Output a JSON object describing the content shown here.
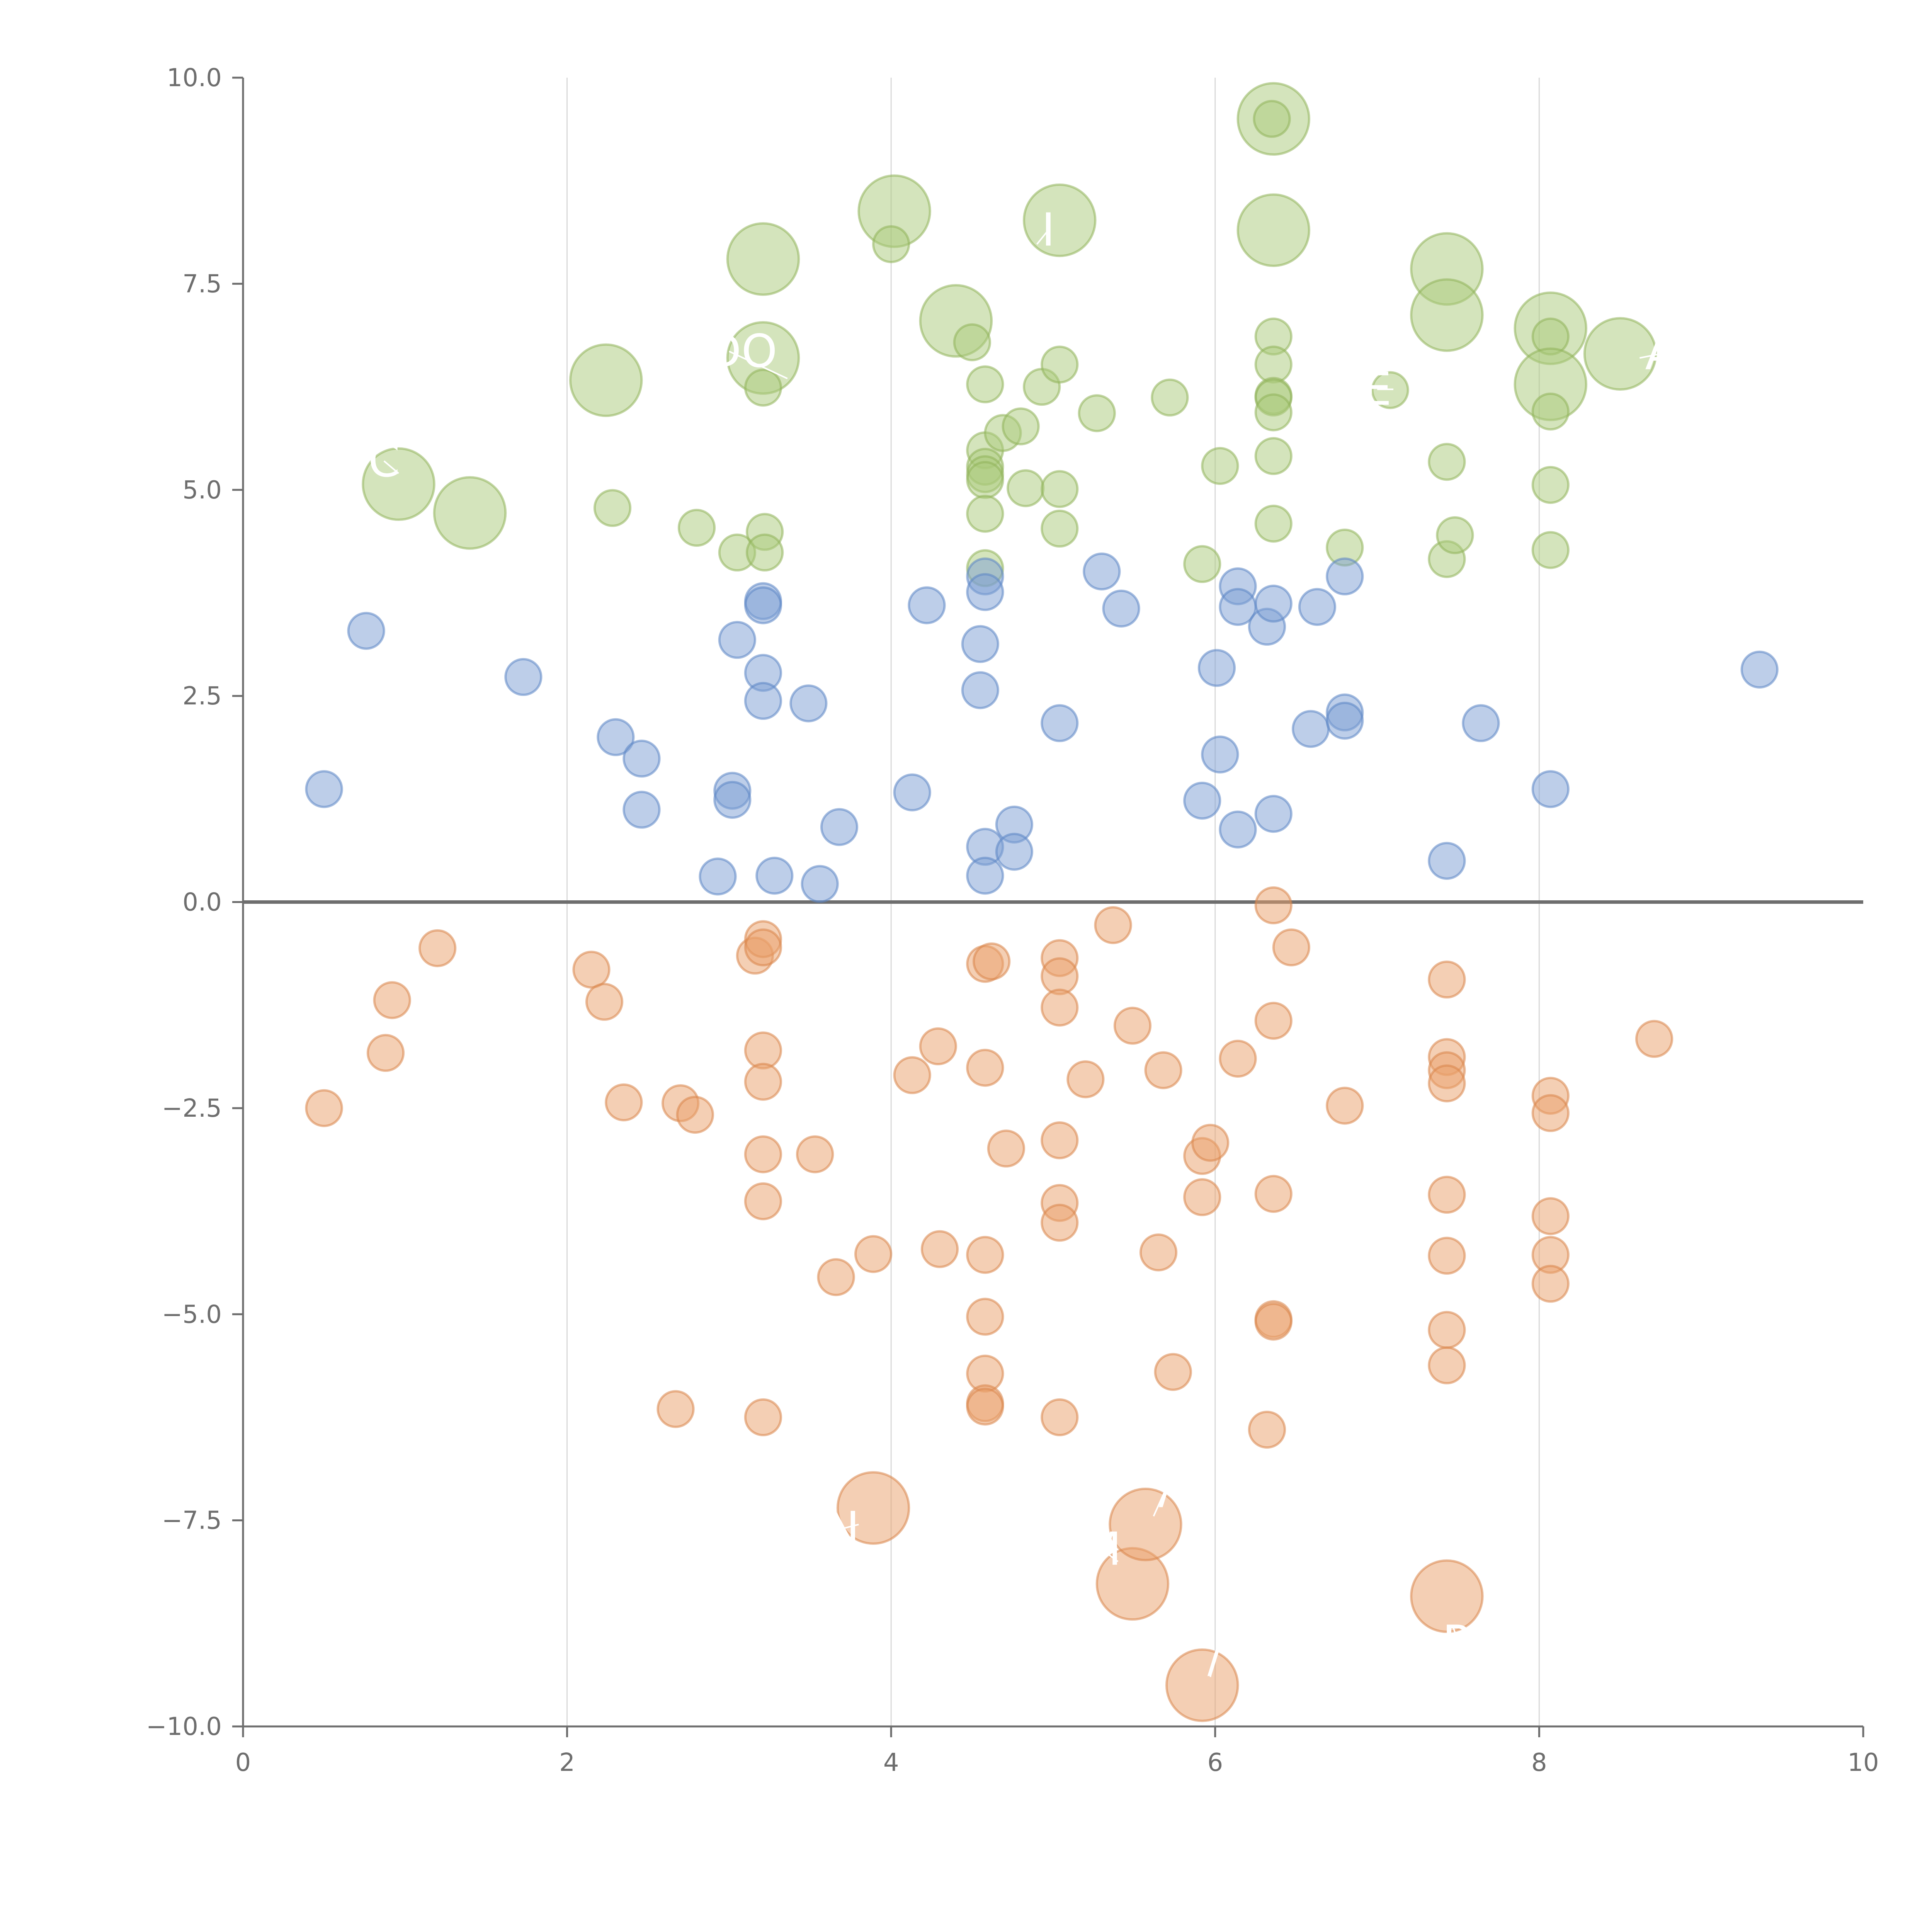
{
  "chart_data": {
    "type": "scatter",
    "title": "",
    "xlabel": "",
    "ylabel": "",
    "xlim": [
      0,
      10
    ],
    "ylim": [
      -10,
      10
    ],
    "x_ticks": [
      0,
      2,
      4,
      6,
      8,
      10
    ],
    "x_tick_labels": [
      "0",
      "2",
      "4",
      "6",
      "8",
      "10"
    ],
    "y_ticks": [
      10,
      7.5,
      5,
      2.5,
      0,
      -2.5,
      -5,
      -7.5,
      -10
    ],
    "y_tick_labels": [
      "10.0",
      "7.5",
      "5.0",
      "2.5",
      "0.0",
      "−2.5",
      "−5.0",
      "−7.5",
      "−10.0"
    ],
    "vertical_grid": [
      2,
      4,
      6,
      8
    ],
    "zero_line": 0,
    "colors": {
      "green": "#a9c97a",
      "green_edge": "#8fb35a",
      "blue": "#7b9ed3",
      "blue_edge": "#5b85c4",
      "orange": "#e9a06a",
      "orange_edge": "#d9854a",
      "axis": "#6e6e6e",
      "grid": "#d9d9d9",
      "zero_line": "#6e6e6e",
      "label": "#ffffff"
    },
    "series": [
      {
        "name": "positive-high",
        "color": "green",
        "points": [
          [
            6.36,
            9.5,
            0.22
          ],
          [
            6.35,
            9.5,
            0.11
          ],
          [
            4.02,
            8.38,
            0.22
          ],
          [
            4.0,
            7.98,
            0.11
          ],
          [
            5.04,
            8.27,
            0.22
          ],
          [
            6.36,
            8.15,
            0.22
          ],
          [
            7.43,
            7.68,
            0.22
          ],
          [
            7.43,
            7.12,
            0.22
          ],
          [
            8.07,
            6.96,
            0.22
          ],
          [
            8.07,
            6.86,
            0.11
          ],
          [
            8.07,
            6.28,
            0.22
          ],
          [
            8.07,
            5.95,
            0.11
          ],
          [
            8.5,
            6.65,
            0.22
          ],
          [
            3.21,
            7.8,
            0.22
          ],
          [
            3.21,
            6.6,
            0.22
          ],
          [
            3.21,
            6.24,
            0.11
          ],
          [
            4.4,
            7.05,
            0.22
          ],
          [
            4.5,
            6.79,
            0.11
          ],
          [
            2.24,
            6.33,
            0.22
          ],
          [
            0.96,
            5.07,
            0.22
          ],
          [
            1.4,
            4.72,
            0.22
          ],
          [
            2.28,
            4.78,
            0.11
          ],
          [
            2.8,
            4.54,
            0.11
          ],
          [
            3.05,
            4.24,
            0.11
          ],
          [
            3.22,
            4.49,
            0.11
          ],
          [
            3.22,
            4.24,
            0.11
          ],
          [
            4.58,
            6.28,
            0.11
          ],
          [
            4.58,
            5.48,
            0.11
          ],
          [
            4.58,
            5.28,
            0.11
          ],
          [
            4.58,
            5.19,
            0.11
          ],
          [
            4.58,
            5.12,
            0.11
          ],
          [
            4.58,
            4.71,
            0.11
          ],
          [
            4.58,
            4.05,
            0.11
          ],
          [
            4.69,
            5.69,
            0.11
          ],
          [
            4.8,
            5.77,
            0.11
          ],
          [
            4.83,
            5.02,
            0.11
          ],
          [
            4.93,
            6.25,
            0.11
          ],
          [
            5.04,
            6.52,
            0.11
          ],
          [
            5.04,
            5.01,
            0.11
          ],
          [
            5.04,
            4.53,
            0.11
          ],
          [
            5.27,
            5.93,
            0.11
          ],
          [
            5.72,
            6.12,
            0.11
          ],
          [
            5.92,
            4.1,
            0.11
          ],
          [
            6.03,
            5.29,
            0.11
          ],
          [
            6.36,
            6.86,
            0.11
          ],
          [
            6.36,
            6.52,
            0.11
          ],
          [
            6.36,
            6.14,
            0.11
          ],
          [
            6.36,
            6.12,
            0.11
          ],
          [
            6.36,
            5.94,
            0.11
          ],
          [
            6.36,
            5.41,
            0.11
          ],
          [
            6.36,
            4.59,
            0.11
          ],
          [
            6.8,
            4.3,
            0.11
          ],
          [
            7.08,
            6.21,
            0.11
          ],
          [
            7.43,
            5.34,
            0.11
          ],
          [
            7.43,
            4.16,
            0.11
          ],
          [
            7.48,
            4.45,
            0.11
          ],
          [
            8.07,
            5.06,
            0.11
          ],
          [
            8.07,
            4.27,
            0.11
          ]
        ]
      },
      {
        "name": "positive-low",
        "color": "blue",
        "points": [
          [
            0.76,
            3.29
          ],
          [
            1.73,
            2.73
          ],
          [
            0.5,
            1.37
          ],
          [
            2.3,
            2.0
          ],
          [
            2.46,
            1.74
          ],
          [
            2.46,
            1.12
          ],
          [
            2.93,
            0.31
          ],
          [
            3.05,
            3.18
          ],
          [
            3.02,
            1.35
          ],
          [
            3.02,
            1.24
          ],
          [
            3.21,
            3.65
          ],
          [
            3.21,
            3.6
          ],
          [
            3.21,
            2.78
          ],
          [
            3.21,
            2.44
          ],
          [
            3.28,
            0.32
          ],
          [
            3.49,
            2.41
          ],
          [
            3.56,
            0.22
          ],
          [
            3.68,
            0.91
          ],
          [
            4.13,
            1.33
          ],
          [
            4.22,
            3.6
          ],
          [
            4.55,
            3.13
          ],
          [
            4.55,
            2.57
          ],
          [
            4.58,
            3.95
          ],
          [
            4.58,
            3.76
          ],
          [
            4.58,
            0.67
          ],
          [
            4.58,
            0.32
          ],
          [
            4.76,
            0.94
          ],
          [
            4.76,
            0.61
          ],
          [
            5.04,
            2.17
          ],
          [
            5.3,
            4.01
          ],
          [
            5.42,
            3.56
          ],
          [
            5.92,
            1.23
          ],
          [
            6.01,
            2.84
          ],
          [
            6.03,
            1.79
          ],
          [
            6.14,
            3.83
          ],
          [
            6.14,
            3.58
          ],
          [
            6.14,
            0.88
          ],
          [
            6.32,
            3.34
          ],
          [
            6.36,
            3.62
          ],
          [
            6.36,
            1.07
          ],
          [
            6.59,
            2.1
          ],
          [
            6.63,
            3.58
          ],
          [
            6.8,
            3.95
          ],
          [
            6.8,
            2.3
          ],
          [
            6.8,
            2.2
          ],
          [
            7.43,
            0.5
          ],
          [
            7.64,
            2.17
          ],
          [
            8.07,
            1.37
          ],
          [
            9.36,
            2.82
          ]
        ]
      },
      {
        "name": "negative",
        "color": "orange",
        "points": [
          [
            0.5,
            -2.5,
            0.11
          ],
          [
            0.88,
            -1.83,
            0.11
          ],
          [
            0.92,
            -1.19,
            0.11
          ],
          [
            1.2,
            -0.56,
            0.11
          ],
          [
            2.15,
            -0.82,
            0.11
          ],
          [
            2.23,
            -1.21,
            0.11
          ],
          [
            2.35,
            -2.43,
            0.11
          ],
          [
            2.67,
            -6.15,
            0.11
          ],
          [
            2.7,
            -2.44,
            0.11
          ],
          [
            2.79,
            -2.58,
            0.11
          ],
          [
            3.16,
            -0.65,
            0.11
          ],
          [
            3.21,
            -0.45,
            0.11
          ],
          [
            3.21,
            -0.55,
            0.11
          ],
          [
            3.21,
            -1.8,
            0.11
          ],
          [
            3.21,
            -2.18,
            0.11
          ],
          [
            3.21,
            -3.06,
            0.11
          ],
          [
            3.21,
            -3.63,
            0.11
          ],
          [
            3.21,
            -6.25,
            0.11
          ],
          [
            3.53,
            -3.06,
            0.11
          ],
          [
            3.66,
            -4.55,
            0.11
          ],
          [
            3.89,
            -4.27,
            0.11
          ],
          [
            3.89,
            -7.35,
            0.22
          ],
          [
            4.13,
            -2.1,
            0.11
          ],
          [
            4.29,
            -1.75,
            0.11
          ],
          [
            4.3,
            -4.21,
            0.11
          ],
          [
            4.58,
            -0.75,
            0.11
          ],
          [
            4.62,
            -0.72,
            0.11
          ],
          [
            4.58,
            -2.01,
            0.11
          ],
          [
            4.58,
            -4.28,
            0.11
          ],
          [
            4.58,
            -5.03,
            0.11
          ],
          [
            4.58,
            -5.72,
            0.11
          ],
          [
            4.58,
            -6.08,
            0.11
          ],
          [
            4.58,
            -6.12,
            0.11
          ],
          [
            4.71,
            -2.99,
            0.11
          ],
          [
            5.04,
            -0.68,
            0.11
          ],
          [
            5.04,
            -0.9,
            0.11
          ],
          [
            5.04,
            -1.28,
            0.11
          ],
          [
            5.04,
            -2.89,
            0.11
          ],
          [
            5.04,
            -3.65,
            0.11
          ],
          [
            5.04,
            -3.89,
            0.11
          ],
          [
            5.04,
            -6.25,
            0.11
          ],
          [
            5.2,
            -2.15,
            0.11
          ],
          [
            5.37,
            -0.28,
            0.11
          ],
          [
            5.49,
            -1.5,
            0.11
          ],
          [
            5.49,
            -8.27,
            0.22
          ],
          [
            5.57,
            -7.55,
            0.22
          ],
          [
            5.65,
            -4.25,
            0.11
          ],
          [
            5.68,
            -2.04,
            0.11
          ],
          [
            5.74,
            -5.7,
            0.11
          ],
          [
            5.92,
            -3.08,
            0.11
          ],
          [
            5.97,
            -2.92,
            0.11
          ],
          [
            5.92,
            -3.58,
            0.11
          ],
          [
            5.92,
            -9.5,
            0.22
          ],
          [
            6.14,
            -1.9,
            0.11
          ],
          [
            6.32,
            -6.4,
            0.11
          ],
          [
            6.36,
            -0.04,
            0.11
          ],
          [
            6.36,
            -1.44,
            0.11
          ],
          [
            6.36,
            -3.54,
            0.11
          ],
          [
            6.36,
            -5.06,
            0.11
          ],
          [
            6.36,
            -5.09,
            0.11
          ],
          [
            6.47,
            -0.55,
            0.11
          ],
          [
            6.8,
            -2.47,
            0.11
          ],
          [
            7.43,
            -0.94,
            0.11
          ],
          [
            7.43,
            -1.88,
            0.11
          ],
          [
            7.43,
            -2.04,
            0.11
          ],
          [
            7.43,
            -2.2,
            0.11
          ],
          [
            7.43,
            -3.55,
            0.11
          ],
          [
            7.43,
            -4.29,
            0.11
          ],
          [
            7.43,
            -5.19,
            0.11
          ],
          [
            7.43,
            -5.62,
            0.11
          ],
          [
            7.43,
            -8.42,
            0.22
          ],
          [
            8.07,
            -2.35,
            0.11
          ],
          [
            8.07,
            -2.56,
            0.11
          ],
          [
            8.07,
            -3.81,
            0.11
          ],
          [
            8.07,
            -4.28,
            0.11
          ],
          [
            8.07,
            -4.63,
            0.11
          ],
          [
            8.71,
            -1.66,
            0.11
          ]
        ]
      }
    ],
    "annotations": [
      {
        "text": "LDO",
        "x": 3.0,
        "y": 6.68,
        "px": 3.36,
        "py": 6.35
      },
      {
        "text": "C",
        "x": 0.87,
        "y": 5.35,
        "px": 0.96,
        "py": 5.2
      },
      {
        "text": "A",
        "x": 8.75,
        "y": 6.65,
        "px": 8.62,
        "py": 6.6
      },
      {
        "text": "E",
        "x": 7.0,
        "y": 6.22,
        "px": 7.1,
        "py": 6.22
      },
      {
        "text": "I",
        "x": 4.97,
        "y": 8.15,
        "px": 4.9,
        "py": 7.98
      },
      {
        "text": "N",
        "x": 3.7,
        "y": -7.6,
        "px": 3.8,
        "py": -7.55
      },
      {
        "text": "M",
        "x": 5.3,
        "y": -7.85,
        "px": 5.4,
        "py": -8.0
      },
      {
        "text": "/",
        "x": 5.7,
        "y": -7.1,
        "px": 5.62,
        "py": -7.45
      },
      {
        "text": "/",
        "x": 6.0,
        "y": -9.15,
        "px": 5.97,
        "py": -9.4
      },
      {
        "text": "R",
        "x": 7.5,
        "y": -8.98,
        "px": 7.47,
        "py": -8.8
      }
    ]
  }
}
